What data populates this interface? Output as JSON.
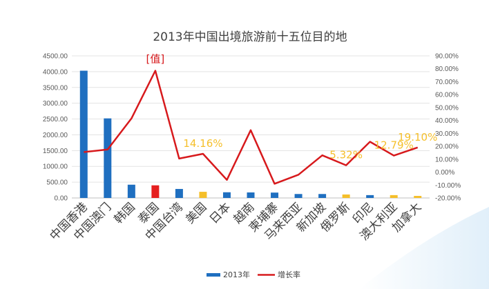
{
  "chart_data": {
    "type": "bar",
    "title": "2013年中国出境旅游前十五位目的地",
    "categories": [
      "中国香港",
      "中国澳门",
      "韩国",
      "泰国",
      "中国台湾",
      "美国",
      "日本",
      "越南",
      "柬埔寨",
      "马来西亚",
      "新加坡",
      "俄罗斯",
      "印尼",
      "澳大利亚",
      "加拿大"
    ],
    "series": [
      {
        "name": "2013年",
        "axis": "left",
        "kind": "bar",
        "values": [
          4030,
          2520,
          420,
          400,
          285,
          195,
          180,
          175,
          170,
          125,
          125,
          110,
          90,
          90,
          65
        ],
        "bar_colors": [
          "#1f6fc0",
          "#1f6fc0",
          "#1f6fc0",
          "#e51f1f",
          "#1f6fc0",
          "#f5bf2a",
          "#1f6fc0",
          "#1f6fc0",
          "#1f6fc0",
          "#1f6fc0",
          "#1f6fc0",
          "#f5bf2a",
          "#1f6fc0",
          "#f5bf2a",
          "#f5bf2a"
        ]
      },
      {
        "name": "增长率",
        "axis": "right",
        "kind": "line",
        "color": "#d7191c",
        "values": [
          15.5,
          17.5,
          41.5,
          78.5,
          10.5,
          14.16,
          -6.0,
          32.5,
          -9.0,
          -2.0,
          13.0,
          5.32,
          23.5,
          12.79,
          19.1
        ]
      }
    ],
    "y_left": {
      "min": 0,
      "max": 4500,
      "step": 500,
      "ticks": [
        "0.00",
        "500.00",
        "1000.00",
        "1500.00",
        "2000.00",
        "2500.00",
        "3000.00",
        "3500.00",
        "4000.00",
        "4500.00"
      ]
    },
    "y_right": {
      "min": -20,
      "max": 90,
      "step": 10,
      "ticks": [
        "-20.00%",
        "-10.00%",
        "0.00%",
        "10.00%",
        "20.00%",
        "30.00%",
        "40.00%",
        "50.00%",
        "60.00%",
        "70.00%",
        "80.00%",
        "90.00%"
      ]
    },
    "annotations": [
      {
        "text": "[值]",
        "at_index": 3,
        "color": "#d7191c"
      },
      {
        "text": "14.16%",
        "at_index": 5,
        "color": "#f5bf2a"
      },
      {
        "text": "5.32%",
        "at_index": 11,
        "color": "#f5bf2a"
      },
      {
        "text": "12.79%",
        "at_index": 13,
        "color": "#f5bf2a"
      },
      {
        "text": "19.10%",
        "at_index": 14,
        "color": "#f5bf2a"
      }
    ],
    "grid": true,
    "legend_position": "bottom",
    "bar_color": "#1f6fc0",
    "line_color": "#d7191c"
  }
}
